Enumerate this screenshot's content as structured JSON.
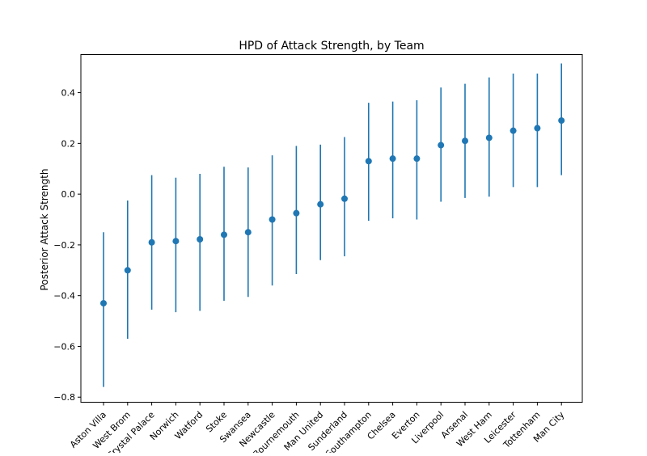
{
  "chart_data": {
    "type": "scatter",
    "title": "HPD of Attack Strength, by Team",
    "xlabel": "",
    "ylabel": "Posterior Attack Strength",
    "ylim": [
      -0.82,
      0.55
    ],
    "yticks": [
      -0.8,
      -0.6,
      -0.4,
      -0.2,
      0.0,
      0.2,
      0.4
    ],
    "ytick_labels": [
      "−0.8",
      "−0.6",
      "−0.4",
      "−0.2",
      "0.0",
      "0.2",
      "0.4"
    ],
    "grid": false,
    "color": "#1f77b4",
    "categories": [
      "Aston Villa",
      "West Brom",
      "Crystal Palace",
      "Norwich",
      "Watford",
      "Stoke",
      "Swansea",
      "Newcastle",
      "Bournemouth",
      "Man United",
      "Sunderland",
      "Southampton",
      "Chelsea",
      "Everton",
      "Liverpool",
      "Arsenal",
      "West Ham",
      "Leicester",
      "Tottenham",
      "Man City"
    ],
    "values": [
      -0.43,
      -0.3,
      -0.19,
      -0.185,
      -0.178,
      -0.16,
      -0.15,
      -0.1,
      -0.075,
      -0.04,
      -0.018,
      0.13,
      0.14,
      0.14,
      0.193,
      0.21,
      0.222,
      0.25,
      0.26,
      0.29
    ],
    "hpd_lower": [
      -0.76,
      -0.57,
      -0.455,
      -0.465,
      -0.46,
      -0.42,
      -0.405,
      -0.36,
      -0.315,
      -0.26,
      -0.245,
      -0.105,
      -0.095,
      -0.1,
      -0.03,
      -0.015,
      -0.01,
      0.028,
      0.028,
      0.075
    ],
    "hpd_upper": [
      -0.15,
      -0.025,
      0.075,
      0.065,
      0.08,
      0.108,
      0.105,
      0.153,
      0.19,
      0.195,
      0.225,
      0.36,
      0.365,
      0.37,
      0.42,
      0.435,
      0.46,
      0.475,
      0.475,
      0.515
    ]
  }
}
